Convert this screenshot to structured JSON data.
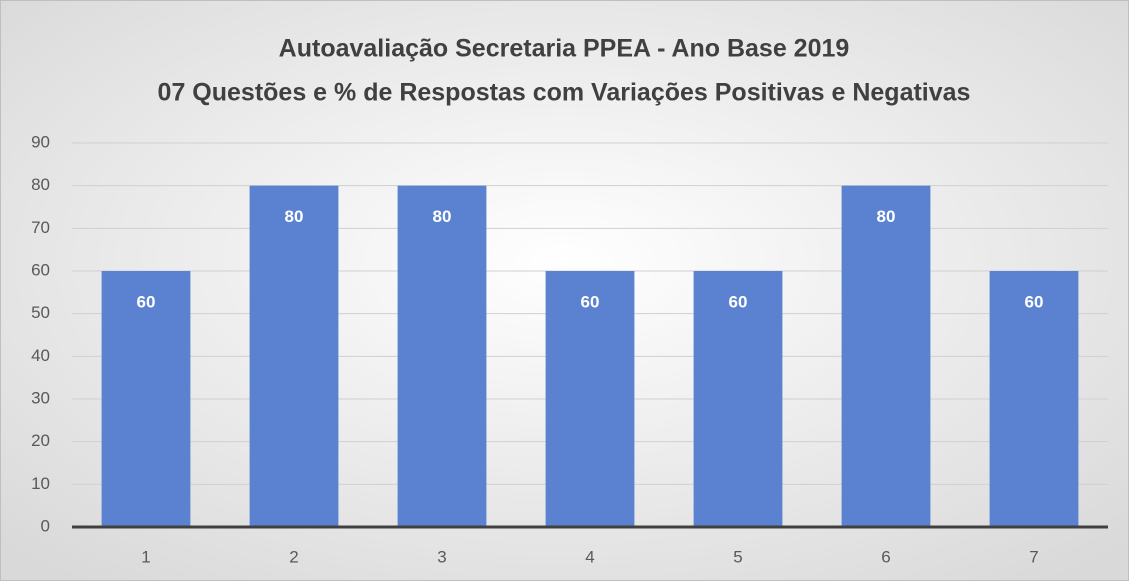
{
  "chart_data": {
    "type": "bar",
    "title": "Autoavaliação Secretaria PPEA  - Ano Base 2019",
    "subtitle": "07 Questões e % de Respostas com Variações Positivas e Negativas",
    "categories": [
      "1",
      "2",
      "3",
      "4",
      "5",
      "6",
      "7"
    ],
    "values": [
      60,
      80,
      80,
      60,
      60,
      80,
      60
    ],
    "color": "#5b82d0",
    "ylim": [
      0,
      90
    ],
    "yticks": [
      0,
      10,
      20,
      30,
      40,
      50,
      60,
      70,
      80,
      90
    ],
    "grid": true
  }
}
